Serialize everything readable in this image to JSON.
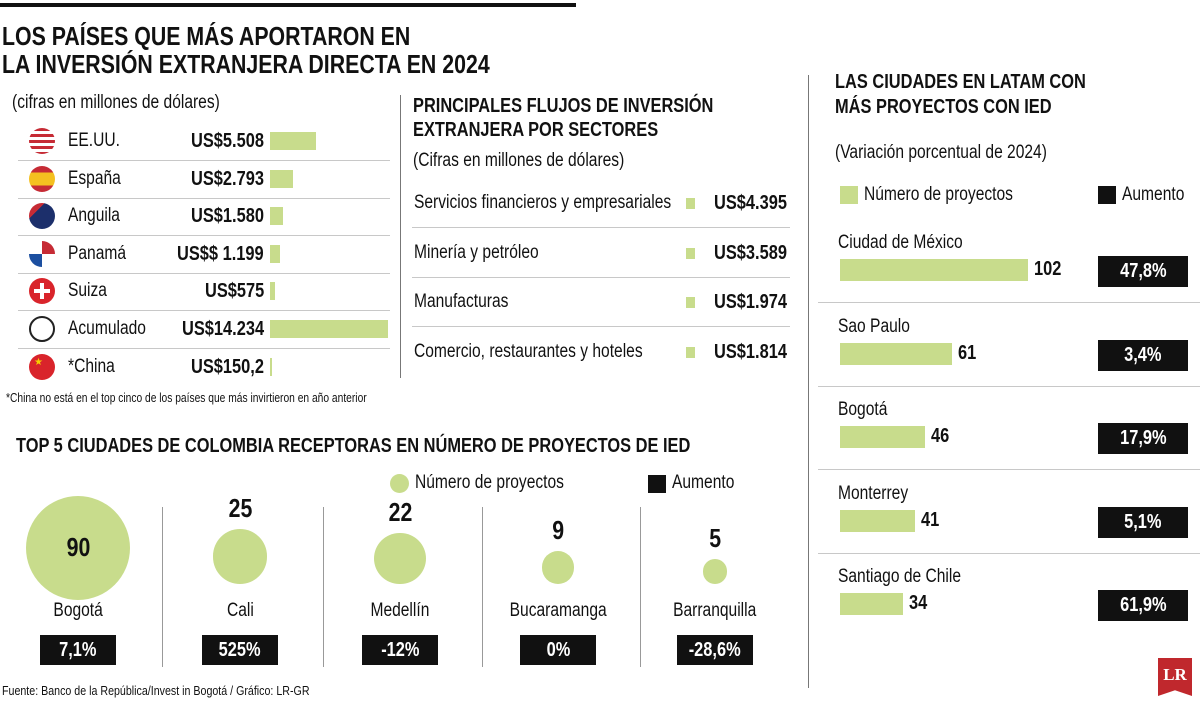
{
  "colors": {
    "green": "#c8dc8c",
    "black": "#111111",
    "logo_red": "#c0282d"
  },
  "main_title": [
    "LOS PAÍSES QUE MÁS APORTARON EN",
    "LA INVERSIÓN EXTRANJERA DIRECTA EN 2024"
  ],
  "countries": {
    "subtitle": "(cifras en millones de dólares)",
    "footnote": "*China no está en el top cinco de los países que más invirtieron en año anterior",
    "rows": [
      {
        "name": "EE.UU.",
        "label": "US$5.508",
        "value": 5508,
        "icon": "usa-flag-icon"
      },
      {
        "name": "España",
        "label": "US$2.793",
        "value": 2793,
        "icon": "spain-flag-icon"
      },
      {
        "name": "Anguila",
        "label": "US$1.580",
        "value": 1580,
        "icon": "anguilla-flag-icon"
      },
      {
        "name": "Panamá",
        "label": "US$$ 1.199",
        "value": 1199,
        "icon": "panama-flag-icon"
      },
      {
        "name": "Suiza",
        "label": "US$575",
        "value": 575,
        "icon": "switzerland-flag-icon"
      },
      {
        "name": "Acumulado",
        "label": "US$14.234",
        "value": 14234,
        "icon": "globe-icon"
      },
      {
        "name": "*China",
        "label": "US$150,2",
        "value": 150.2,
        "icon": "china-flag-icon"
      }
    ]
  },
  "sectors": {
    "title": [
      "PRINCIPALES FLUJOS DE INVERSIÓN",
      "EXTRANJERA POR SECTORES"
    ],
    "subtitle": "(Cifras en millones de dólares)",
    "rows": [
      {
        "name": "Servicios financieros y empresariales",
        "label": "US$4.395",
        "value": 4395
      },
      {
        "name": "Minería y petróleo",
        "label": "US$3.589",
        "value": 3589
      },
      {
        "name": "Manufacturas",
        "label": "US$1.974",
        "value": 1974
      },
      {
        "name": "Comercio, restaurantes y hoteles",
        "label": "US$1.814",
        "value": 1814
      }
    ]
  },
  "latam": {
    "title": [
      "LAS CIUDADES EN LATAM CON",
      "MÁS PROYECTOS CON IED"
    ],
    "subtitle": "(Variación porcentual de 2024)",
    "legend": {
      "projects": "Número de proyectos",
      "increase": "Aumento"
    },
    "rows": [
      {
        "city": "Ciudad de México",
        "projects": 102,
        "increase": "47,8%"
      },
      {
        "city": "Sao Paulo",
        "projects": 61,
        "increase": "3,4%"
      },
      {
        "city": "Bogotá",
        "projects": 46,
        "increase": "17,9%"
      },
      {
        "city": "Monterrey",
        "projects": 41,
        "increase": "5,1%"
      },
      {
        "city": "Santiago de Chile",
        "projects": 34,
        "increase": "61,9%"
      }
    ]
  },
  "colombia": {
    "title": "TOP 5 CIUDADES DE COLOMBIA RECEPTORAS EN NÚMERO DE PROYECTOS DE IED",
    "legend": {
      "projects": "Número de proyectos",
      "increase": "Aumento"
    },
    "rows": [
      {
        "city": "Bogotá",
        "projects": 90,
        "increase": "7,1%"
      },
      {
        "city": "Cali",
        "projects": 25,
        "increase": "525%"
      },
      {
        "city": "Medellín",
        "projects": 22,
        "increase": "-12%"
      },
      {
        "city": "Bucaramanga",
        "projects": 9,
        "increase": "0%"
      },
      {
        "city": "Barranquilla",
        "projects": 5,
        "increase": "-28,6%"
      }
    ]
  },
  "source": "Fuente: Banco de la República/Invest in Bogotá / Gráfico: LR-GR",
  "logo": "LR",
  "chart_data": [
    {
      "type": "bar",
      "title": "LOS PAÍSES QUE MÁS APORTARON EN LA INVERSIÓN EXTRANJERA DIRECTA EN 2024",
      "ylabel": "(cifras en millones de dólares)",
      "categories": [
        "EE.UU.",
        "España",
        "Anguila",
        "Panamá",
        "Suiza",
        "Acumulado",
        "*China"
      ],
      "values": [
        5508,
        2793,
        1580,
        1199,
        575,
        14234,
        150.2
      ]
    },
    {
      "type": "table",
      "title": "PRINCIPALES FLUJOS DE INVERSIÓN EXTRANJERA POR SECTORES",
      "categories": [
        "Servicios financieros y empresariales",
        "Minería y petróleo",
        "Manufacturas",
        "Comercio, restaurantes y hoteles"
      ],
      "values": [
        4395,
        3589,
        1974,
        1814
      ]
    },
    {
      "type": "bar",
      "title": "LAS CIUDADES EN LATAM CON MÁS PROYECTOS CON IED",
      "categories": [
        "Ciudad de México",
        "Sao Paulo",
        "Bogotá",
        "Monterrey",
        "Santiago de Chile"
      ],
      "series": [
        {
          "name": "Número de proyectos",
          "values": [
            102,
            61,
            46,
            41,
            34
          ]
        },
        {
          "name": "Aumento",
          "values": [
            47.8,
            3.4,
            17.9,
            5.1,
            61.9
          ]
        }
      ]
    },
    {
      "type": "scatter",
      "title": "TOP 5 CIUDADES DE COLOMBIA RECEPTORAS EN NÚMERO DE PROYECTOS DE IED",
      "categories": [
        "Bogotá",
        "Cali",
        "Medellín",
        "Bucaramanga",
        "Barranquilla"
      ],
      "series": [
        {
          "name": "Número de proyectos",
          "values": [
            90,
            25,
            22,
            9,
            5
          ]
        },
        {
          "name": "Aumento",
          "values": [
            7.1,
            525,
            -12,
            0,
            -28.6
          ]
        }
      ]
    }
  ]
}
